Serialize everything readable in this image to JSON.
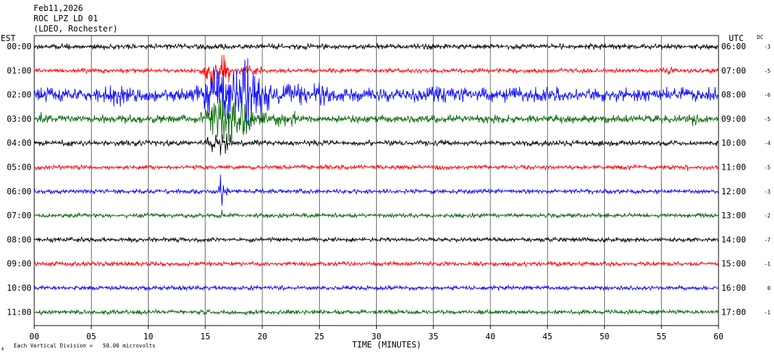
{
  "header": {
    "date": "Feb11,2026",
    "station": "ROC LPZ LD 01",
    "network": "(LDEO, Rochester)"
  },
  "left_axis_label": "EST",
  "right_axis_label": "UTC",
  "dc_label": "DC",
  "x_axis_title": "TIME (MINUTES)",
  "scale_note": "Each Vertical Division =   50.00 microvolts",
  "corner_mark": "A",
  "colors": {
    "black": "#000000",
    "red": "#ff0000",
    "blue": "#0000ff",
    "green": "#006400",
    "grid": "#000000"
  },
  "chart_data": {
    "type": "line",
    "subtype": "helicorder",
    "xlabel": "TIME (MINUTES)",
    "xlim": [
      0,
      60
    ],
    "x_ticks": [
      "00",
      "05",
      "10",
      "15",
      "20",
      "25",
      "30",
      "35",
      "40",
      "45",
      "50",
      "55",
      "60"
    ],
    "rows": [
      {
        "est": "00:00",
        "utc": "06:00",
        "dc": "-3",
        "color": "black",
        "noise": 5,
        "events": []
      },
      {
        "est": "01:00",
        "utc": "07:00",
        "dc": "-5",
        "color": "red",
        "noise": 4,
        "events": [
          {
            "start": 14.5,
            "end": 20,
            "amp": 35
          },
          {
            "start": 54,
            "end": 60,
            "amp": 7
          }
        ]
      },
      {
        "est": "02:00",
        "utc": "08:00",
        "dc": "-6",
        "color": "blue",
        "noise": 12,
        "events": [
          {
            "start": 5,
            "end": 12,
            "amp": 22
          },
          {
            "start": 14.2,
            "end": 26,
            "amp": 75
          },
          {
            "start": 26,
            "end": 60,
            "amp": 16
          }
        ]
      },
      {
        "est": "03:00",
        "utc": "09:00",
        "dc": "-5",
        "color": "green",
        "noise": 7,
        "events": [
          {
            "start": 0,
            "end": 1.5,
            "amp": 14
          },
          {
            "start": 14.5,
            "end": 23,
            "amp": 50
          },
          {
            "start": 57.5,
            "end": 59,
            "amp": 18
          }
        ]
      },
      {
        "est": "04:00",
        "utc": "10:00",
        "dc": "-4",
        "color": "black",
        "noise": 5,
        "events": [
          {
            "start": 14.5,
            "end": 20,
            "amp": 25
          },
          {
            "start": 56,
            "end": 57,
            "amp": 6
          }
        ]
      },
      {
        "est": "05:00",
        "utc": "11:00",
        "dc": "-5",
        "color": "red",
        "noise": 4,
        "events": [
          {
            "start": 35,
            "end": 36,
            "amp": 7
          },
          {
            "start": 49.5,
            "end": 50.5,
            "amp": 5
          },
          {
            "start": 57,
            "end": 58,
            "amp": 8
          }
        ]
      },
      {
        "est": "06:00",
        "utc": "12:00",
        "dc": "-3",
        "color": "blue",
        "noise": 4,
        "events": [
          {
            "start": 16.2,
            "end": 17,
            "amp": 40
          }
        ]
      },
      {
        "est": "07:00",
        "utc": "13:00",
        "dc": "-2",
        "color": "green",
        "noise": 4,
        "events": [
          {
            "start": 16.3,
            "end": 16.8,
            "amp": 15
          }
        ]
      },
      {
        "est": "08:00",
        "utc": "14:00",
        "dc": "-7",
        "color": "black",
        "noise": 4,
        "events": []
      },
      {
        "est": "09:00",
        "utc": "15:00",
        "dc": "-1",
        "color": "red",
        "noise": 4,
        "events": []
      },
      {
        "est": "10:00",
        "utc": "16:00",
        "dc": "0",
        "color": "blue",
        "noise": 4,
        "events": []
      },
      {
        "est": "11:00",
        "utc": "17:00",
        "dc": "-1",
        "color": "green",
        "noise": 4,
        "events": []
      }
    ]
  }
}
